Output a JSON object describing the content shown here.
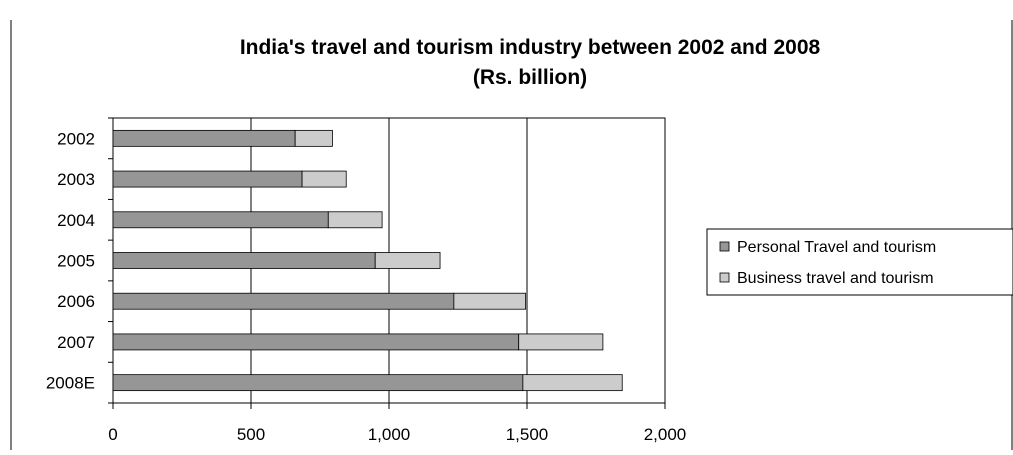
{
  "chart_data": {
    "type": "bar",
    "orientation": "horizontal",
    "stacked": true,
    "title_line1": "India's travel and tourism industry between 2002 and 2008",
    "title_line2": "(Rs. billion)",
    "categories": [
      "2002",
      "2003",
      "2004",
      "2005",
      "2006",
      "2007",
      "2008E"
    ],
    "series": [
      {
        "name": "Personal Travel and tourism",
        "values": [
          660,
          685,
          780,
          950,
          1235,
          1470,
          1485
        ],
        "color": "#969696"
      },
      {
        "name": "Business travel and tourism",
        "values": [
          135,
          160,
          195,
          235,
          260,
          305,
          360
        ],
        "color": "#cccccc"
      }
    ],
    "xlim": [
      0,
      2000
    ],
    "x_ticks": [
      "0",
      "500",
      "1,000",
      "1,500",
      "2,000"
    ],
    "x_tick_values": [
      0,
      500,
      1000,
      1500,
      2000
    ],
    "gridlines": "vertical",
    "legend_position": "right"
  }
}
